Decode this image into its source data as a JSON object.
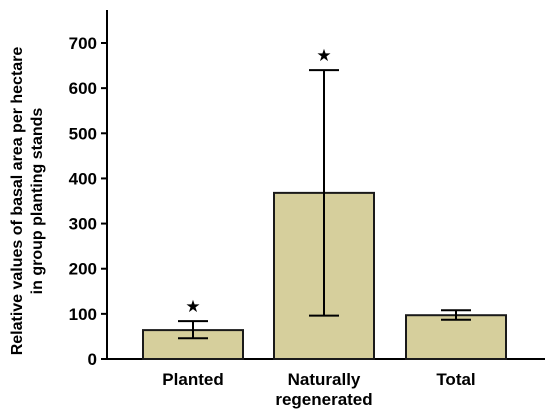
{
  "chart_data": {
    "type": "bar",
    "title": "",
    "xlabel": "",
    "ylabel_lines": [
      "Relative values of basal area per hectare",
      "in group planting stands"
    ],
    "ylim": [
      0,
      700
    ],
    "yticks": [
      0,
      100,
      200,
      300,
      400,
      500,
      600,
      700
    ],
    "categories": [
      {
        "lines": [
          "Planted"
        ]
      },
      {
        "lines": [
          "Naturally",
          "regenerated"
        ]
      },
      {
        "lines": [
          "Total"
        ]
      }
    ],
    "values": [
      64,
      368,
      97
    ],
    "error_bars": [
      {
        "low": 46,
        "high": 84
      },
      {
        "low": 96,
        "high": 640
      },
      {
        "low": 87,
        "high": 108
      }
    ],
    "significance_markers": [
      "★",
      "★",
      ""
    ],
    "grid": false,
    "legend": "none",
    "colors": {
      "bar_fill": "#d6cf9c",
      "bar_stroke": "#1a1a1a",
      "axis": "#000000"
    }
  }
}
